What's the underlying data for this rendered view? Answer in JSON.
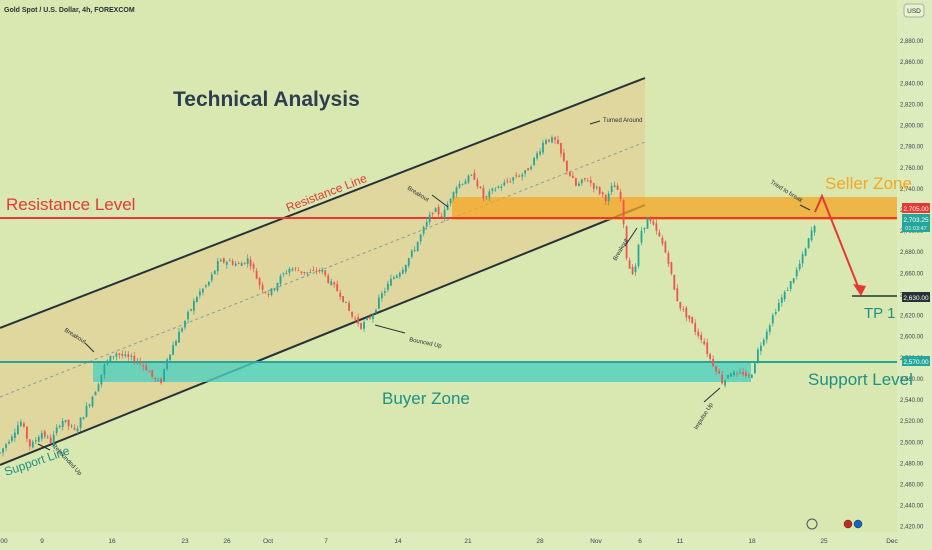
{
  "header": {
    "symbol_title": "Gold Spot / U.S. Dollar, 4h, FOREXCOM",
    "currency": "USD"
  },
  "price_tags": {
    "resistance": "2,705.00",
    "last": "2,703.25",
    "countdown": "01:03:47",
    "tp": "2,630.00",
    "support": "2,570.00"
  },
  "annotations": {
    "main_title": "Technical Analysis",
    "resistance_level": "Resistance Level",
    "resistance_line": "Resistance Line",
    "support_line": "Support Line",
    "seller_zone": "Seller Zone",
    "buyer_zone": "Buyer Zone",
    "support_level": "Support Level",
    "tp1": "TP 1",
    "breakout_1": "Breakout",
    "breakout_2": "Breakout",
    "breakout_3": "Breakout",
    "turned_around": "Turned Around",
    "bounced_up": "Bounced Up",
    "rebounded_up": "Rebounded Up",
    "impulse_up": "Impulse Up",
    "tried_to_break": "Tried to break"
  },
  "colors": {
    "background": "#d8e8b0",
    "resistance": "#e53935",
    "support": "#26a69a",
    "seller_zone": "#f5a623",
    "buyer_zone": "#4dd0c0",
    "channel_fill": "#e6c98e",
    "candle_up": "#26a69a",
    "candle_down": "#ef5350",
    "arrow": "#e53935",
    "text_dark": "#2c3e50"
  },
  "chart_data": {
    "type": "candlestick",
    "instrument": "Gold Spot / U.S. Dollar",
    "timeframe": "4h",
    "x_ticks": [
      "00",
      "9",
      "16",
      "23",
      "26",
      "Oct",
      "7",
      "14",
      "21",
      "28",
      "Nov",
      "6",
      "11",
      "18",
      "25",
      "Dec"
    ],
    "y_ticks": [
      "2,880.00",
      "2,860.00",
      "2,840.00",
      "2,820.00",
      "2,800.00",
      "2,780.00",
      "2,760.00",
      "2,740.00",
      "2,720.00",
      "2,700.00",
      "2,680.00",
      "2,660.00",
      "2,640.00",
      "2,620.00",
      "2,600.00",
      "2,580.00",
      "2,560.00",
      "2,540.00",
      "2,520.00",
      "2,500.00",
      "2,480.00",
      "2,460.00",
      "2,440.00",
      "2,420.00"
    ],
    "ylim": [
      2415,
      2900
    ],
    "levels": {
      "resistance": 2705.0,
      "support": 2570.0,
      "tp1": 2630.0,
      "last_price": 2703.25
    },
    "zones": {
      "seller_zone": [
        2705,
        2725
      ],
      "buyer_zone": [
        2552,
        2570
      ]
    },
    "price_path": [
      [
        0,
        2490
      ],
      [
        6,
        2505
      ],
      [
        12,
        2520
      ],
      [
        18,
        2495
      ],
      [
        24,
        2510
      ],
      [
        30,
        2500
      ],
      [
        36,
        2522
      ],
      [
        44,
        2510
      ],
      [
        50,
        2530
      ],
      [
        56,
        2550
      ],
      [
        62,
        2575
      ],
      [
        68,
        2585
      ],
      [
        74,
        2580
      ],
      [
        80,
        2578
      ],
      [
        86,
        2570
      ],
      [
        90,
        2560
      ],
      [
        94,
        2555
      ],
      [
        98,
        2580
      ],
      [
        104,
        2600
      ],
      [
        110,
        2620
      ],
      [
        116,
        2640
      ],
      [
        122,
        2650
      ],
      [
        128,
        2670
      ],
      [
        134,
        2672
      ],
      [
        140,
        2668
      ],
      [
        146,
        2674
      ],
      [
        152,
        2650
      ],
      [
        158,
        2640
      ],
      [
        164,
        2655
      ],
      [
        170,
        2665
      ],
      [
        176,
        2662
      ],
      [
        182,
        2660
      ],
      [
        188,
        2664
      ],
      [
        194,
        2650
      ],
      [
        200,
        2640
      ],
      [
        206,
        2620
      ],
      [
        212,
        2610
      ],
      [
        218,
        2620
      ],
      [
        224,
        2640
      ],
      [
        230,
        2655
      ],
      [
        236,
        2665
      ],
      [
        242,
        2680
      ],
      [
        248,
        2700
      ],
      [
        254,
        2720
      ],
      [
        260,
        2715
      ],
      [
        266,
        2740
      ],
      [
        272,
        2748
      ],
      [
        278,
        2752
      ],
      [
        284,
        2730
      ],
      [
        290,
        2740
      ],
      [
        296,
        2745
      ],
      [
        302,
        2752
      ],
      [
        308,
        2755
      ],
      [
        314,
        2770
      ],
      [
        320,
        2788
      ],
      [
        326,
        2785
      ],
      [
        332,
        2760
      ],
      [
        338,
        2742
      ],
      [
        344,
        2750
      ],
      [
        350,
        2740
      ],
      [
        356,
        2730
      ],
      [
        360,
        2745
      ],
      [
        364,
        2730
      ],
      [
        366,
        2700
      ],
      [
        368,
        2668
      ],
      [
        372,
        2660
      ],
      [
        376,
        2700
      ],
      [
        380,
        2712
      ],
      [
        384,
        2702
      ],
      [
        388,
        2690
      ],
      [
        392,
        2672
      ],
      [
        396,
        2640
      ],
      [
        400,
        2625
      ],
      [
        404,
        2618
      ],
      [
        408,
        2605
      ],
      [
        412,
        2598
      ],
      [
        416,
        2580
      ],
      [
        420,
        2570
      ],
      [
        424,
        2556
      ],
      [
        428,
        2568
      ],
      [
        432,
        2562
      ],
      [
        436,
        2566
      ],
      [
        440,
        2560
      ],
      [
        444,
        2585
      ],
      [
        448,
        2600
      ],
      [
        452,
        2615
      ],
      [
        456,
        2630
      ],
      [
        460,
        2640
      ],
      [
        464,
        2652
      ],
      [
        468,
        2665
      ],
      [
        472,
        2680
      ],
      [
        476,
        2700
      ],
      [
        478,
        2703.25
      ]
    ]
  }
}
